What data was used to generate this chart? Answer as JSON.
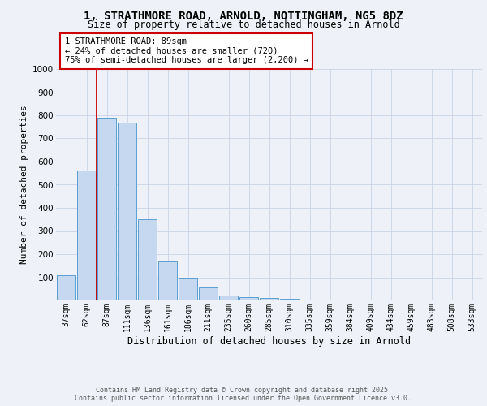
{
  "title_line1": "1, STRATHMORE ROAD, ARNOLD, NOTTINGHAM, NG5 8DZ",
  "title_line2": "Size of property relative to detached houses in Arnold",
  "xlabel": "Distribution of detached houses by size in Arnold",
  "ylabel": "Number of detached properties",
  "categories": [
    "37sqm",
    "62sqm",
    "87sqm",
    "111sqm",
    "136sqm",
    "161sqm",
    "186sqm",
    "211sqm",
    "235sqm",
    "260sqm",
    "285sqm",
    "310sqm",
    "335sqm",
    "359sqm",
    "384sqm",
    "409sqm",
    "434sqm",
    "459sqm",
    "483sqm",
    "508sqm",
    "533sqm"
  ],
  "values": [
    110,
    560,
    790,
    770,
    350,
    170,
    100,
    55,
    20,
    15,
    10,
    8,
    5,
    5,
    2,
    5,
    2,
    2,
    2,
    2,
    2
  ],
  "bar_color": "#c5d8f0",
  "bar_edge_color": "#5a9fd4",
  "vline_x_index": 2,
  "vline_color": "#cc0000",
  "annotation_title": "1 STRATHMORE ROAD: 89sqm",
  "annotation_line2": "← 24% of detached houses are smaller (720)",
  "annotation_line3": "75% of semi-detached houses are larger (2,200) →",
  "annotation_box_color": "#ffffff",
  "annotation_border_color": "#cc0000",
  "ylim": [
    0,
    1000
  ],
  "yticks": [
    0,
    100,
    200,
    300,
    400,
    500,
    600,
    700,
    800,
    900,
    1000
  ],
  "footer_line1": "Contains HM Land Registry data © Crown copyright and database right 2025.",
  "footer_line2": "Contains public sector information licensed under the Open Government Licence v3.0.",
  "bg_color": "#eef2f8",
  "plot_bg_color": "#eef2f8",
  "grid_color": "#c8d4e8",
  "title_fontsize": 10,
  "subtitle_fontsize": 8.5,
  "ylabel_fontsize": 8,
  "xlabel_fontsize": 8.5
}
